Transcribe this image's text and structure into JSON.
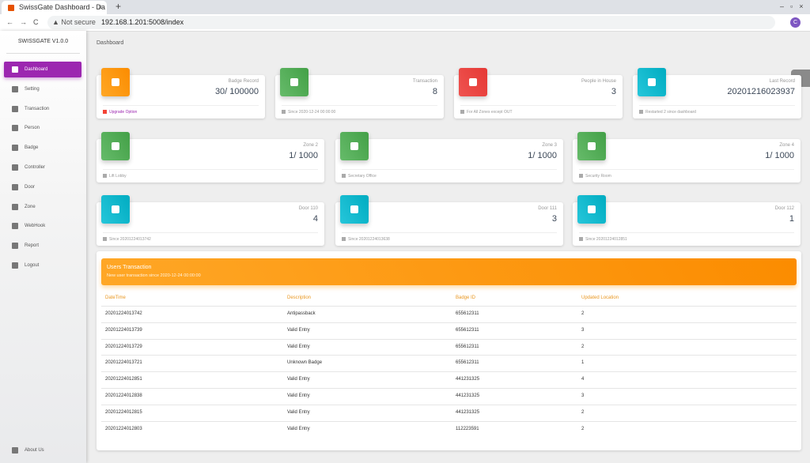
{
  "browser": {
    "tab_title": "SwissGate Dashboard - Da",
    "security": "Not secure",
    "url": "192.168.1.201:5008/index",
    "avatar": "C"
  },
  "sidebar": {
    "brand": "SWISSGATE V1.0.0",
    "items": [
      "Dashboard",
      "Setting",
      "Transaction",
      "Person",
      "Badge",
      "Controller",
      "Door",
      "Zone",
      "WebHook",
      "Report",
      "Logout"
    ],
    "footer": "About Us"
  },
  "header": {
    "title": "Dashboard"
  },
  "stat_cards": [
    {
      "label": "Badge Record",
      "value": "30/ 100000",
      "footer": "Upgrade Option"
    },
    {
      "label": "Transaction",
      "value": "8",
      "footer": "Since 2020-12-24 00:00:00"
    },
    {
      "label": "People in House",
      "value": "3",
      "footer": "For All Zones except OUT"
    },
    {
      "label": "Last Record",
      "value": "20201216023937",
      "footer": "Restarted 2 since dashboard"
    }
  ],
  "zone_cards": [
    {
      "label": "Zone 2",
      "value": "1/ 1000",
      "footer": "Lift Lobby"
    },
    {
      "label": "Zone 3",
      "value": "1/ 1000",
      "footer": "Secretary Office"
    },
    {
      "label": "Zone 4",
      "value": "1/ 1000",
      "footer": "Security Room"
    }
  ],
  "door_cards": [
    {
      "label": "Door 110",
      "value": "4",
      "footer": "Since 20201224013742"
    },
    {
      "label": "Door 111",
      "value": "3",
      "footer": "Since 20201224013638"
    },
    {
      "label": "Door 112",
      "value": "1",
      "footer": "Since 20201224012851"
    }
  ],
  "table": {
    "title": "Users Transaction",
    "subtitle": "New user transaction since 2020-12-24 00:00:00",
    "columns": [
      "DateTime",
      "Description",
      "Badge ID",
      "Updated Location"
    ],
    "rows": [
      [
        "20201224013742",
        "Antipassback",
        "655612311",
        "2"
      ],
      [
        "20201224013739",
        "Valid Entry",
        "655612311",
        "3"
      ],
      [
        "20201224013729",
        "Valid Entry",
        "655612311",
        "2"
      ],
      [
        "20201224013721",
        "Unknown Badge",
        "655612311",
        "1"
      ],
      [
        "20201224012851",
        "Valid Entry",
        "441231325",
        "4"
      ],
      [
        "20201224012838",
        "Valid Entry",
        "441231325",
        "3"
      ],
      [
        "20201224012815",
        "Valid Entry",
        "441231325",
        "2"
      ],
      [
        "20201224012803",
        "Valid Entry",
        "112223591",
        "2"
      ]
    ]
  }
}
